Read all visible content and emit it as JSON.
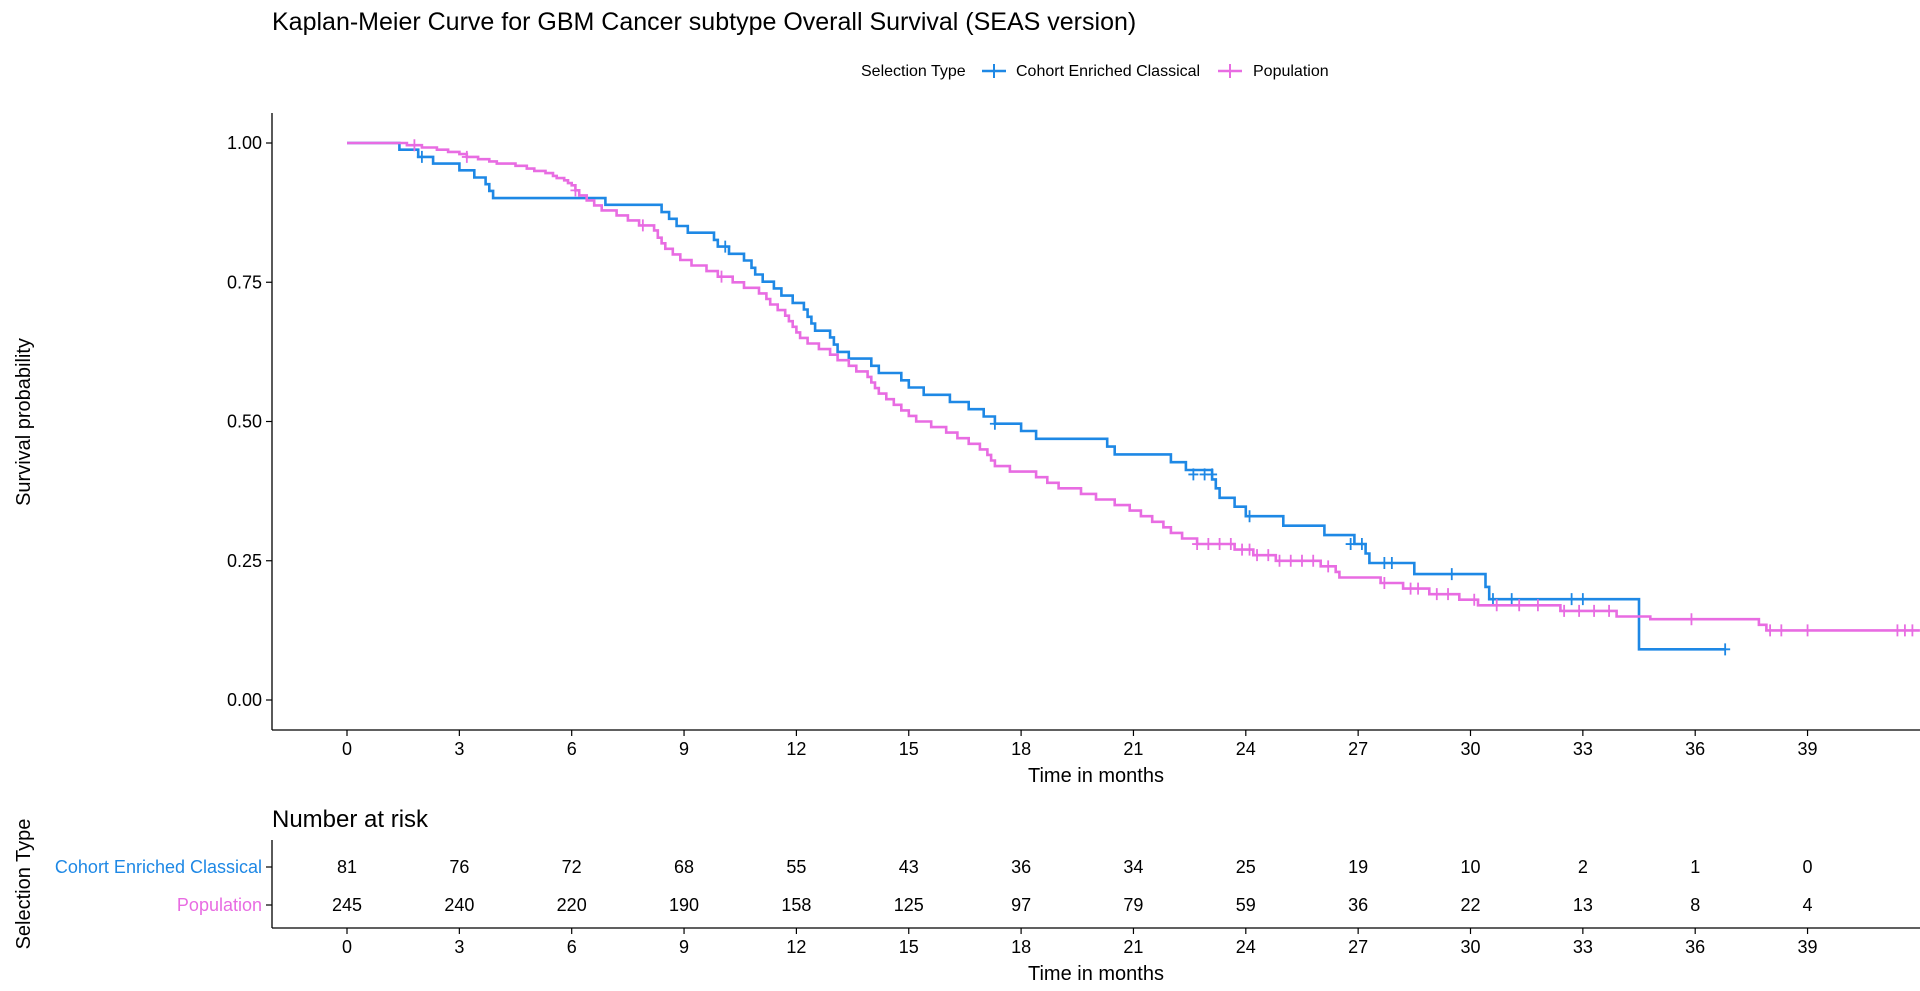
{
  "chart_data": [
    {
      "type": "line",
      "title": "Kaplan-Meier Curve for GBM Cancer subtype Overall Survival (SEAS version)",
      "xlabel": "Time in months",
      "ylabel": "Survival probability",
      "xlim": [
        -2,
        42
      ],
      "ylim": [
        -0.05,
        1.05
      ],
      "x_ticks": [
        0,
        3,
        6,
        9,
        12,
        15,
        18,
        21,
        24,
        27,
        30,
        33,
        36,
        39
      ],
      "y_ticks": [
        0.0,
        0.25,
        0.5,
        0.75,
        1.0
      ],
      "y_tick_labels": [
        "0.00",
        "0.25",
        "0.50",
        "0.75",
        "1.00"
      ],
      "grid": false,
      "legend": {
        "title": "Selection Type",
        "placement": "top"
      },
      "series": [
        {
          "name": "Cohort Enriched Classical",
          "color": "#1E88E5",
          "steps": [
            [
              0,
              1.0
            ],
            [
              1.4,
              0.988
            ],
            [
              1.9,
              0.975
            ],
            [
              2.3,
              0.963
            ],
            [
              3.0,
              0.951
            ],
            [
              3.4,
              0.938
            ],
            [
              3.7,
              0.926
            ],
            [
              3.8,
              0.914
            ],
            [
              3.9,
              0.901
            ],
            [
              6.9,
              0.889
            ],
            [
              8.4,
              0.876
            ],
            [
              8.6,
              0.864
            ],
            [
              8.8,
              0.851
            ],
            [
              9.1,
              0.839
            ],
            [
              9.8,
              0.826
            ],
            [
              9.9,
              0.814
            ],
            [
              10.2,
              0.801
            ],
            [
              10.6,
              0.789
            ],
            [
              10.8,
              0.776
            ],
            [
              10.9,
              0.764
            ],
            [
              11.1,
              0.751
            ],
            [
              11.4,
              0.739
            ],
            [
              11.6,
              0.726
            ],
            [
              11.9,
              0.713
            ],
            [
              12.2,
              0.701
            ],
            [
              12.3,
              0.688
            ],
            [
              12.4,
              0.676
            ],
            [
              12.5,
              0.663
            ],
            [
              12.9,
              0.651
            ],
            [
              13.0,
              0.638
            ],
            [
              13.1,
              0.625
            ],
            [
              13.4,
              0.613
            ],
            [
              14.0,
              0.6
            ],
            [
              14.2,
              0.587
            ],
            [
              14.8,
              0.574
            ],
            [
              15.0,
              0.561
            ],
            [
              15.4,
              0.548
            ],
            [
              16.1,
              0.535
            ],
            [
              16.6,
              0.522
            ],
            [
              17.0,
              0.509
            ],
            [
              17.3,
              0.496
            ],
            [
              18.0,
              0.483
            ],
            [
              18.4,
              0.469
            ],
            [
              20.3,
              0.455
            ],
            [
              20.5,
              0.441
            ],
            [
              22.0,
              0.427
            ],
            [
              22.4,
              0.413
            ],
            [
              23.1,
              0.396
            ],
            [
              23.2,
              0.38
            ],
            [
              23.3,
              0.363
            ],
            [
              23.7,
              0.347
            ],
            [
              24.0,
              0.33
            ],
            [
              25.0,
              0.313
            ],
            [
              26.1,
              0.296
            ],
            [
              26.9,
              0.28
            ],
            [
              27.2,
              0.263
            ],
            [
              27.3,
              0.246
            ],
            [
              28.5,
              0.226
            ],
            [
              30.4,
              0.203
            ],
            [
              30.5,
              0.181
            ],
            [
              34.5,
              0.091
            ],
            [
              36.8,
              0.091
            ]
          ],
          "censored": [
            [
              2.0,
              0.975
            ],
            [
              10.1,
              0.814
            ],
            [
              17.3,
              0.496
            ],
            [
              22.6,
              0.405
            ],
            [
              22.9,
              0.405
            ],
            [
              23.1,
              0.405
            ],
            [
              24.1,
              0.33
            ],
            [
              26.8,
              0.28
            ],
            [
              27.1,
              0.28
            ],
            [
              27.7,
              0.246
            ],
            [
              27.9,
              0.246
            ],
            [
              29.5,
              0.226
            ],
            [
              30.6,
              0.181
            ],
            [
              31.1,
              0.181
            ],
            [
              32.7,
              0.181
            ],
            [
              33.0,
              0.181
            ],
            [
              36.8,
              0.091
            ]
          ]
        },
        {
          "name": "Population",
          "color": "#E86CE2",
          "steps": [
            [
              0,
              1.0
            ],
            [
              1.6,
              0.996
            ],
            [
              2.0,
              0.992
            ],
            [
              2.4,
              0.988
            ],
            [
              2.7,
              0.984
            ],
            [
              3.0,
              0.98
            ],
            [
              3.2,
              0.975
            ],
            [
              3.5,
              0.971
            ],
            [
              3.8,
              0.967
            ],
            [
              4.0,
              0.963
            ],
            [
              4.5,
              0.959
            ],
            [
              4.8,
              0.954
            ],
            [
              5.0,
              0.95
            ],
            [
              5.3,
              0.946
            ],
            [
              5.5,
              0.941
            ],
            [
              5.6,
              0.937
            ],
            [
              5.8,
              0.933
            ],
            [
              5.9,
              0.928
            ],
            [
              6.0,
              0.924
            ],
            [
              6.1,
              0.915
            ],
            [
              6.2,
              0.906
            ],
            [
              6.4,
              0.897
            ],
            [
              6.6,
              0.888
            ],
            [
              6.8,
              0.879
            ],
            [
              7.2,
              0.87
            ],
            [
              7.5,
              0.861
            ],
            [
              7.8,
              0.852
            ],
            [
              8.2,
              0.843
            ],
            [
              8.3,
              0.83
            ],
            [
              8.4,
              0.82
            ],
            [
              8.5,
              0.81
            ],
            [
              8.7,
              0.8
            ],
            [
              8.9,
              0.79
            ],
            [
              9.2,
              0.78
            ],
            [
              9.6,
              0.77
            ],
            [
              9.9,
              0.76
            ],
            [
              10.3,
              0.75
            ],
            [
              10.6,
              0.74
            ],
            [
              11.0,
              0.73
            ],
            [
              11.2,
              0.72
            ],
            [
              11.3,
              0.71
            ],
            [
              11.5,
              0.7
            ],
            [
              11.7,
              0.69
            ],
            [
              11.8,
              0.68
            ],
            [
              11.9,
              0.67
            ],
            [
              12.0,
              0.66
            ],
            [
              12.1,
              0.65
            ],
            [
              12.3,
              0.64
            ],
            [
              12.6,
              0.63
            ],
            [
              12.9,
              0.62
            ],
            [
              13.1,
              0.61
            ],
            [
              13.4,
              0.6
            ],
            [
              13.6,
              0.59
            ],
            [
              13.9,
              0.58
            ],
            [
              14.0,
              0.57
            ],
            [
              14.1,
              0.56
            ],
            [
              14.2,
              0.55
            ],
            [
              14.4,
              0.54
            ],
            [
              14.6,
              0.53
            ],
            [
              14.8,
              0.52
            ],
            [
              15.0,
              0.51
            ],
            [
              15.2,
              0.5
            ],
            [
              15.6,
              0.49
            ],
            [
              16.0,
              0.48
            ],
            [
              16.3,
              0.47
            ],
            [
              16.6,
              0.46
            ],
            [
              16.9,
              0.45
            ],
            [
              17.1,
              0.44
            ],
            [
              17.2,
              0.43
            ],
            [
              17.3,
              0.42
            ],
            [
              17.7,
              0.41
            ],
            [
              18.4,
              0.4
            ],
            [
              18.7,
              0.39
            ],
            [
              19.0,
              0.38
            ],
            [
              19.6,
              0.37
            ],
            [
              20.0,
              0.36
            ],
            [
              20.5,
              0.35
            ],
            [
              20.9,
              0.34
            ],
            [
              21.2,
              0.33
            ],
            [
              21.5,
              0.32
            ],
            [
              21.8,
              0.31
            ],
            [
              22.0,
              0.3
            ],
            [
              22.3,
              0.29
            ],
            [
              22.7,
              0.28
            ],
            [
              23.7,
              0.27
            ],
            [
              24.2,
              0.26
            ],
            [
              24.8,
              0.25
            ],
            [
              26.0,
              0.24
            ],
            [
              26.4,
              0.23
            ],
            [
              26.5,
              0.22
            ],
            [
              27.6,
              0.21
            ],
            [
              28.2,
              0.2
            ],
            [
              28.9,
              0.19
            ],
            [
              29.7,
              0.18
            ],
            [
              30.2,
              0.17
            ],
            [
              32.4,
              0.16
            ],
            [
              33.9,
              0.15
            ],
            [
              34.8,
              0.145
            ],
            [
              37.7,
              0.135
            ],
            [
              37.9,
              0.125
            ],
            [
              42.0,
              0.125
            ]
          ],
          "censored": [
            [
              1.8,
              0.996
            ],
            [
              3.2,
              0.975
            ],
            [
              6.1,
              0.915
            ],
            [
              7.9,
              0.852
            ],
            [
              10.0,
              0.76
            ],
            [
              22.7,
              0.28
            ],
            [
              23.0,
              0.28
            ],
            [
              23.3,
              0.28
            ],
            [
              23.6,
              0.28
            ],
            [
              23.9,
              0.27
            ],
            [
              24.1,
              0.27
            ],
            [
              24.3,
              0.26
            ],
            [
              24.6,
              0.26
            ],
            [
              24.9,
              0.25
            ],
            [
              25.2,
              0.25
            ],
            [
              25.5,
              0.25
            ],
            [
              25.8,
              0.25
            ],
            [
              26.2,
              0.24
            ],
            [
              27.7,
              0.21
            ],
            [
              28.4,
              0.2
            ],
            [
              28.6,
              0.2
            ],
            [
              29.1,
              0.19
            ],
            [
              29.4,
              0.19
            ],
            [
              30.1,
              0.18
            ],
            [
              30.7,
              0.17
            ],
            [
              31.3,
              0.17
            ],
            [
              31.8,
              0.17
            ],
            [
              32.5,
              0.16
            ],
            [
              32.9,
              0.16
            ],
            [
              33.3,
              0.16
            ],
            [
              33.7,
              0.16
            ],
            [
              35.9,
              0.145
            ],
            [
              38.0,
              0.125
            ],
            [
              38.3,
              0.125
            ],
            [
              39.0,
              0.125
            ],
            [
              41.4,
              0.125
            ],
            [
              41.6,
              0.125
            ],
            [
              41.8,
              0.125
            ]
          ]
        }
      ]
    },
    {
      "type": "table",
      "title": "Number at risk",
      "xlabel": "Time in months",
      "ylabel": "Selection Type",
      "x_ticks": [
        0,
        3,
        6,
        9,
        12,
        15,
        18,
        21,
        24,
        27,
        30,
        33,
        36,
        39
      ],
      "rows": [
        {
          "name": "Cohort Enriched Classical",
          "color": "#1E88E5",
          "values": [
            81,
            76,
            72,
            68,
            55,
            43,
            36,
            34,
            25,
            19,
            10,
            2,
            1,
            0
          ]
        },
        {
          "name": "Population",
          "color": "#E86CE2",
          "values": [
            245,
            240,
            220,
            190,
            158,
            125,
            97,
            79,
            59,
            36,
            22,
            13,
            8,
            4
          ]
        }
      ]
    }
  ]
}
